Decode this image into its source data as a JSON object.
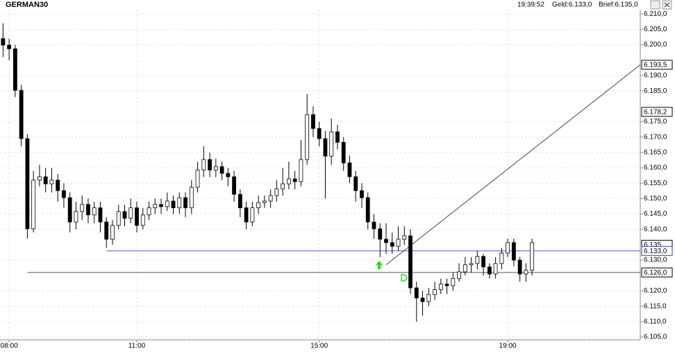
{
  "chart_data": {
    "type": "candlestick",
    "title": "GERMAN30",
    "header": {
      "time": "19:39:52",
      "bid": "Geld:6.133,0",
      "ask": "Brief:6.135,0"
    },
    "categories": [
      null,
      "08:00",
      null,
      null,
      null,
      null,
      null,
      null,
      null,
      null,
      null,
      null,
      null,
      null,
      null,
      null,
      null,
      null,
      null,
      null,
      null,
      null,
      "11:00",
      null,
      null,
      null,
      null,
      null,
      null,
      null,
      null,
      null,
      null,
      null,
      null,
      null,
      null,
      null,
      null,
      null,
      null,
      null,
      null,
      null,
      null,
      null,
      null,
      null,
      null,
      null,
      null,
      null,
      "15:00",
      null,
      null,
      null,
      null,
      null,
      null,
      null,
      null,
      null,
      null,
      null,
      null,
      null,
      null,
      null,
      null,
      null,
      null,
      null,
      null,
      null,
      null,
      null,
      null,
      null,
      null,
      null,
      null,
      null,
      null,
      "19:00",
      null,
      null,
      null,
      null
    ],
    "open": [
      6.202,
      6.1999,
      6.1987,
      6.1852,
      6.1695,
      6.1402,
      6.156,
      6.1571,
      6.1548,
      6.156,
      6.1526,
      6.1503,
      6.1424,
      6.1458,
      6.1481,
      6.1447,
      6.147,
      6.1424,
      6.1368,
      6.1413,
      6.1458,
      6.1436,
      6.147,
      6.1413,
      6.1447,
      6.147,
      6.1481,
      6.1474,
      6.1492,
      6.147,
      6.1503,
      6.147,
      6.1537,
      6.1593,
      6.1627,
      6.1593,
      6.1604,
      6.1582,
      6.1571,
      6.1514,
      6.147,
      6.1424,
      6.147,
      6.1487,
      6.1492,
      6.151,
      6.1532,
      6.1548,
      6.1564,
      6.1555,
      6.1627,
      6.1773,
      6.1728,
      6.1695,
      6.1638,
      6.1717,
      6.1683,
      6.1616,
      6.1571,
      6.1526,
      6.1503,
      6.1424,
      6.1402,
      6.1368,
      6.1357,
      6.1345,
      6.1368,
      6.1379,
      6.121,
      6.1177,
      6.1165,
      6.1188,
      6.1204,
      6.1222,
      6.1217,
      6.124,
      6.1262,
      6.1285,
      6.1289,
      6.1312,
      6.1278,
      6.1255,
      6.1289,
      6.1323,
      6.1357,
      6.13,
      6.1255,
      6.1267
    ],
    "high": [
      6.207,
      6.202,
      6.2,
      6.187,
      6.171,
      6.159,
      6.161,
      6.16,
      6.16,
      6.158,
      6.155,
      6.152,
      6.149,
      6.151,
      6.15,
      6.149,
      6.149,
      6.144,
      6.143,
      6.148,
      6.148,
      6.15,
      6.149,
      6.147,
      6.149,
      6.15,
      6.15,
      6.152,
      6.151,
      6.152,
      6.152,
      6.156,
      6.162,
      6.167,
      6.165,
      6.163,
      6.162,
      6.16,
      6.159,
      6.153,
      6.149,
      6.149,
      6.151,
      6.151,
      6.153,
      6.156,
      6.16,
      6.162,
      6.159,
      6.169,
      6.184,
      6.18,
      6.175,
      6.172,
      6.176,
      6.174,
      6.17,
      6.164,
      6.159,
      6.155,
      6.152,
      6.145,
      6.142,
      6.142,
      6.139,
      6.141,
      6.141,
      6.14,
      6.123,
      6.12,
      6.121,
      6.123,
      6.124,
      6.124,
      6.126,
      6.129,
      6.131,
      6.131,
      6.133,
      6.132,
      6.129,
      6.131,
      6.134,
      6.137,
      6.137,
      6.131,
      6.129,
      6.137
    ],
    "low": [
      6.196,
      6.195,
      6.183,
      6.167,
      6.137,
      6.139,
      6.154,
      6.152,
      6.152,
      6.149,
      6.147,
      6.139,
      6.14,
      6.143,
      6.142,
      6.142,
      6.139,
      6.134,
      6.135,
      6.14,
      6.141,
      6.142,
      6.139,
      6.14,
      6.143,
      6.145,
      6.145,
      6.146,
      6.145,
      6.145,
      6.144,
      6.145,
      6.152,
      6.157,
      6.157,
      6.157,
      6.156,
      6.154,
      6.149,
      6.144,
      6.14,
      6.141,
      6.145,
      6.147,
      6.147,
      6.149,
      6.151,
      6.153,
      6.153,
      6.154,
      6.161,
      6.17,
      6.167,
      6.15,
      6.161,
      6.166,
      6.159,
      6.155,
      6.149,
      6.147,
      6.14,
      6.137,
      6.131,
      6.132,
      6.132,
      6.133,
      6.135,
      6.119,
      6.11,
      6.112,
      6.115,
      6.117,
      6.119,
      6.119,
      6.12,
      6.123,
      6.125,
      6.126,
      6.127,
      6.125,
      6.124,
      6.124,
      6.127,
      6.131,
      6.128,
      6.123,
      6.123,
      6.125
    ],
    "close": [
      6.1999,
      6.1987,
      6.1852,
      6.1695,
      6.1402,
      6.156,
      6.1571,
      6.1548,
      6.156,
      6.1526,
      6.1503,
      6.1424,
      6.1458,
      6.1481,
      6.1447,
      6.147,
      6.1424,
      6.1368,
      6.1413,
      6.1458,
      6.1436,
      6.147,
      6.1413,
      6.1447,
      6.147,
      6.1481,
      6.1474,
      6.1492,
      6.147,
      6.1503,
      6.147,
      6.1537,
      6.1593,
      6.1627,
      6.1593,
      6.1604,
      6.1582,
      6.1571,
      6.1514,
      6.147,
      6.1424,
      6.147,
      6.1487,
      6.1492,
      6.151,
      6.1532,
      6.1548,
      6.1564,
      6.1555,
      6.1627,
      6.1773,
      6.1728,
      6.1695,
      6.1638,
      6.1717,
      6.1683,
      6.1616,
      6.1571,
      6.1526,
      6.1503,
      6.1424,
      6.1402,
      6.1368,
      6.1357,
      6.1345,
      6.1368,
      6.1379,
      6.121,
      6.1177,
      6.1165,
      6.1188,
      6.1204,
      6.1222,
      6.1217,
      6.124,
      6.1262,
      6.1285,
      6.1289,
      6.1312,
      6.1278,
      6.1255,
      6.1289,
      6.1323,
      6.1357,
      6.13,
      6.1255,
      6.1267,
      6.1357
    ],
    "xlim": [
      -0.5,
      104.8
    ],
    "ylim": [
      6.1041,
      6.2114
    ],
    "yticks": [
      {
        "value": 6.105,
        "label": "6.105,0"
      },
      {
        "value": 6.11,
        "label": "6.110,0"
      },
      {
        "value": 6.115,
        "label": "6.115,0"
      },
      {
        "value": 6.12,
        "label": "6.120,0"
      },
      {
        "value": 6.13,
        "label": "6.130,0"
      },
      {
        "value": 6.14,
        "label": "6.140,0"
      },
      {
        "value": 6.145,
        "label": "6.145,0"
      },
      {
        "value": 6.15,
        "label": "6.150,0"
      },
      {
        "value": 6.155,
        "label": "6.155,0"
      },
      {
        "value": 6.16,
        "label": "6.160,0"
      },
      {
        "value": 6.165,
        "label": "6.165,0"
      },
      {
        "value": 6.17,
        "label": "6.170,0"
      },
      {
        "value": 6.175,
        "label": "6.175,0"
      },
      {
        "value": 6.185,
        "label": "6.185,0"
      },
      {
        "value": 6.19,
        "label": "6.190,0"
      },
      {
        "value": 6.2,
        "label": "6.200,0"
      },
      {
        "value": 6.205,
        "label": "6.205,0"
      },
      {
        "value": 6.21,
        "label": "6.210,0"
      }
    ],
    "grid": true,
    "hlines": [
      {
        "value": 6.133,
        "from": 17,
        "color": "#4a5bd6"
      },
      {
        "value": 6.126,
        "from": 4,
        "color": "#555555"
      }
    ],
    "trendline": {
      "x": [
        63,
        104.8
      ],
      "y": [
        6.1285,
        6.1935
      ],
      "color": "#444444"
    },
    "price_tags": [
      {
        "value": 6.1935,
        "label": "6.193,5",
        "color": "#000000"
      },
      {
        "value": 6.1782,
        "label": "6.178,2",
        "color": "#000000"
      },
      {
        "value": 6.135,
        "label": "6.135",
        "color": "#000000"
      },
      {
        "value": 6.133,
        "label": "6.133,0",
        "color": "#2f3fd0"
      },
      {
        "value": 6.126,
        "label": "6.126,0",
        "color": "#000000"
      }
    ]
  }
}
